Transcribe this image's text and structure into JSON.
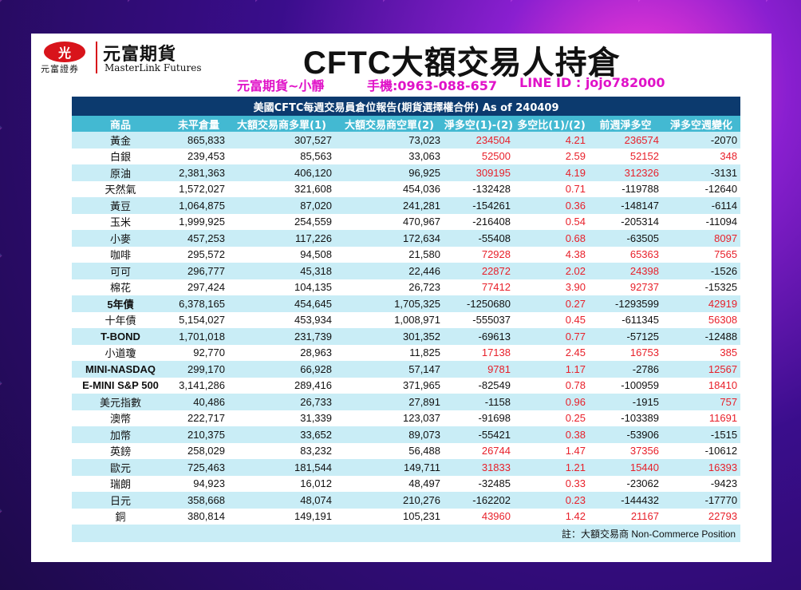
{
  "header": {
    "logo_mark": "光",
    "logo_sub": "元富證券",
    "logo_name": "元富期貨",
    "logo_en": "MasterLink Futures",
    "title": "CFTC大額交易人持倉",
    "contact_name": "元富期貨~小靜",
    "contact_phone": "手機:0963-088-657",
    "contact_line": "LINE ID : jojo782000"
  },
  "table": {
    "title": "美國CFTC每週交易員倉位報告(期貨選擇權合併) As of  240409",
    "columns": [
      "商品",
      "未平倉量",
      "大額交易商多單(1)",
      "大額交易商空單(2)",
      "淨多空(1)-(2)",
      "多空比(1)/(2)",
      "前週淨多空",
      "淨多空週變化"
    ],
    "rows": [
      {
        "name": "黃金",
        "oi": "865,833",
        "long": "307,527",
        "short": "73,023",
        "net": "234504",
        "ratio": "4.21",
        "prev": "236574",
        "chg": "-2070"
      },
      {
        "name": "白銀",
        "oi": "239,453",
        "long": "85,563",
        "short": "33,063",
        "net": "52500",
        "ratio": "2.59",
        "prev": "52152",
        "chg": "348"
      },
      {
        "name": "原油",
        "oi": "2,381,363",
        "long": "406,120",
        "short": "96,925",
        "net": "309195",
        "ratio": "4.19",
        "prev": "312326",
        "chg": "-3131"
      },
      {
        "name": "天然氣",
        "oi": "1,572,027",
        "long": "321,608",
        "short": "454,036",
        "net": "-132428",
        "ratio": "0.71",
        "prev": "-119788",
        "chg": "-12640"
      },
      {
        "name": "黃豆",
        "oi": "1,064,875",
        "long": "87,020",
        "short": "241,281",
        "net": "-154261",
        "ratio": "0.36",
        "prev": "-148147",
        "chg": "-6114"
      },
      {
        "name": "玉米",
        "oi": "1,999,925",
        "long": "254,559",
        "short": "470,967",
        "net": "-216408",
        "ratio": "0.54",
        "prev": "-205314",
        "chg": "-11094"
      },
      {
        "name": "小麥",
        "oi": "457,253",
        "long": "117,226",
        "short": "172,634",
        "net": "-55408",
        "ratio": "0.68",
        "prev": "-63505",
        "chg": "8097"
      },
      {
        "name": "咖啡",
        "oi": "295,572",
        "long": "94,508",
        "short": "21,580",
        "net": "72928",
        "ratio": "4.38",
        "prev": "65363",
        "chg": "7565"
      },
      {
        "name": "可可",
        "oi": "296,777",
        "long": "45,318",
        "short": "22,446",
        "net": "22872",
        "ratio": "2.02",
        "prev": "24398",
        "chg": "-1526"
      },
      {
        "name": "棉花",
        "oi": "297,424",
        "long": "104,135",
        "short": "26,723",
        "net": "77412",
        "ratio": "3.90",
        "prev": "92737",
        "chg": "-15325"
      },
      {
        "name": "5年債",
        "oi": "6,378,165",
        "long": "454,645",
        "short": "1,705,325",
        "net": "-1250680",
        "ratio": "0.27",
        "prev": "-1293599",
        "chg": "42919"
      },
      {
        "name": "十年債",
        "oi": "5,154,027",
        "long": "453,934",
        "short": "1,008,971",
        "net": "-555037",
        "ratio": "0.45",
        "prev": "-611345",
        "chg": "56308"
      },
      {
        "name": "T-BOND",
        "oi": "1,701,018",
        "long": "231,739",
        "short": "301,352",
        "net": "-69613",
        "ratio": "0.77",
        "prev": "-57125",
        "chg": "-12488"
      },
      {
        "name": "小道瓊",
        "oi": "92,770",
        "long": "28,963",
        "short": "11,825",
        "net": "17138",
        "ratio": "2.45",
        "prev": "16753",
        "chg": "385"
      },
      {
        "name": "MINI-NASDAQ",
        "oi": "299,170",
        "long": "66,928",
        "short": "57,147",
        "net": "9781",
        "ratio": "1.17",
        "prev": "-2786",
        "chg": "12567"
      },
      {
        "name": "E-MINI S&P 500",
        "oi": "3,141,286",
        "long": "289,416",
        "short": "371,965",
        "net": "-82549",
        "ratio": "0.78",
        "prev": "-100959",
        "chg": "18410"
      },
      {
        "name": "美元指數",
        "oi": "40,486",
        "long": "26,733",
        "short": "27,891",
        "net": "-1158",
        "ratio": "0.96",
        "prev": "-1915",
        "chg": "757"
      },
      {
        "name": "澳幣",
        "oi": "222,717",
        "long": "31,339",
        "short": "123,037",
        "net": "-91698",
        "ratio": "0.25",
        "prev": "-103389",
        "chg": "11691"
      },
      {
        "name": "加幣",
        "oi": "210,375",
        "long": "33,652",
        "short": "89,073",
        "net": "-55421",
        "ratio": "0.38",
        "prev": "-53906",
        "chg": "-1515"
      },
      {
        "name": "英鎊",
        "oi": "258,029",
        "long": "83,232",
        "short": "56,488",
        "net": "26744",
        "ratio": "1.47",
        "prev": "37356",
        "chg": "-10612"
      },
      {
        "name": "歐元",
        "oi": "725,463",
        "long": "181,544",
        "short": "149,711",
        "net": "31833",
        "ratio": "1.21",
        "prev": "15440",
        "chg": "16393"
      },
      {
        "name": "瑞朗",
        "oi": "94,923",
        "long": "16,012",
        "short": "48,497",
        "net": "-32485",
        "ratio": "0.33",
        "prev": "-23062",
        "chg": "-9423"
      },
      {
        "name": "日元",
        "oi": "358,668",
        "long": "48,074",
        "short": "210,276",
        "net": "-162202",
        "ratio": "0.23",
        "prev": "-144432",
        "chg": "-17770"
      },
      {
        "name": "銅",
        "oi": "380,814",
        "long": "149,191",
        "short": "105,231",
        "net": "43960",
        "ratio": "1.42",
        "prev": "21167",
        "chg": "22793"
      }
    ],
    "note": "註：大額交易商 Non-Commerce Position"
  },
  "colors": {
    "positive": "#e8202a",
    "negative": "#111111",
    "header_bg": "#0c3a6e",
    "col_header_bg": "#43b9d2",
    "stripe": "#c9edf6"
  }
}
